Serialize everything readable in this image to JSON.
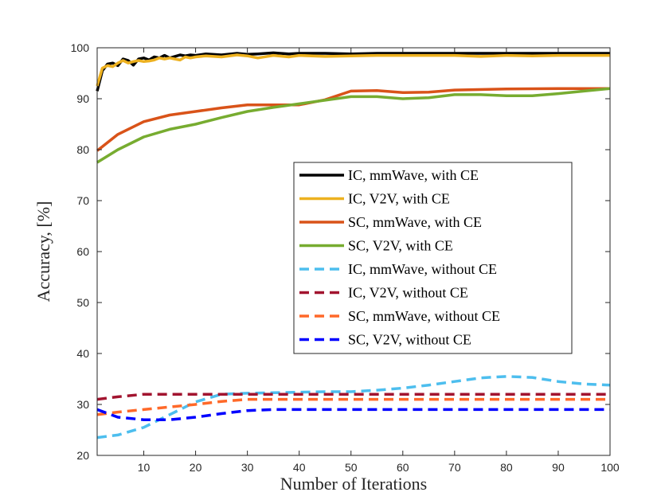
{
  "chart_data": {
    "type": "line",
    "title": "",
    "xlabel": "Number of Iterations",
    "ylabel": "Accuracy, [%]",
    "xlim": [
      1,
      100
    ],
    "ylim": [
      20,
      100
    ],
    "xticks": [
      10,
      20,
      30,
      40,
      50,
      60,
      70,
      80,
      90,
      100
    ],
    "yticks": [
      20,
      30,
      40,
      50,
      60,
      70,
      80,
      90,
      100
    ],
    "legend_position": "right-middle",
    "grid": false,
    "series": [
      {
        "name": "IC, mmWave, with CE",
        "color": "#000000",
        "style": "solid",
        "x": [
          1,
          2,
          3,
          4,
          5,
          6,
          7,
          8,
          9,
          10,
          11,
          12,
          13,
          14,
          15,
          16,
          17,
          18,
          19,
          20,
          22,
          25,
          28,
          30,
          32,
          35,
          38,
          40,
          45,
          50,
          55,
          60,
          65,
          70,
          75,
          80,
          85,
          90,
          95,
          100
        ],
        "y": [
          91.5,
          95.5,
          96.8,
          97.0,
          96.5,
          97.8,
          97.5,
          96.6,
          97.8,
          98.0,
          97.6,
          98.2,
          98.0,
          98.5,
          98.0,
          98.3,
          98.6,
          98.4,
          98.6,
          98.5,
          98.8,
          98.6,
          98.9,
          98.7,
          98.8,
          99.0,
          98.8,
          98.9,
          98.9,
          98.8,
          98.9,
          98.9,
          98.9,
          98.9,
          98.9,
          98.9,
          98.9,
          98.9,
          98.9,
          98.9
        ]
      },
      {
        "name": "IC, V2V, with CE",
        "color": "#EDB120",
        "style": "solid",
        "x": [
          1,
          2,
          3,
          4,
          5,
          6,
          7,
          8,
          9,
          10,
          11,
          12,
          13,
          14,
          15,
          16,
          17,
          18,
          19,
          20,
          22,
          25,
          28,
          30,
          32,
          35,
          38,
          40,
          45,
          50,
          55,
          60,
          65,
          70,
          75,
          80,
          85,
          90,
          95,
          100
        ],
        "y": [
          92.5,
          96.0,
          96.5,
          96.3,
          97.0,
          97.5,
          97.0,
          97.3,
          97.5,
          97.3,
          97.4,
          97.6,
          98.0,
          97.8,
          98.0,
          97.8,
          97.6,
          98.2,
          98.0,
          98.2,
          98.4,
          98.2,
          98.6,
          98.4,
          98.0,
          98.5,
          98.2,
          98.5,
          98.3,
          98.4,
          98.5,
          98.5,
          98.5,
          98.5,
          98.3,
          98.5,
          98.4,
          98.5,
          98.5,
          98.5
        ]
      },
      {
        "name": "SC, mmWave, with CE",
        "color": "#D95319",
        "style": "solid",
        "x": [
          1,
          5,
          10,
          15,
          20,
          25,
          30,
          35,
          40,
          45,
          50,
          55,
          60,
          65,
          70,
          80,
          90,
          100
        ],
        "y": [
          79.8,
          83.0,
          85.5,
          86.8,
          87.5,
          88.2,
          88.8,
          88.8,
          88.8,
          89.8,
          91.5,
          91.6,
          91.2,
          91.3,
          91.7,
          91.9,
          92.0,
          92.0
        ]
      },
      {
        "name": "SC, V2V, with CE",
        "color": "#77AC30",
        "style": "solid",
        "x": [
          1,
          5,
          10,
          15,
          20,
          25,
          30,
          35,
          40,
          45,
          50,
          55,
          60,
          65,
          70,
          75,
          80,
          85,
          90,
          95,
          100
        ],
        "y": [
          77.5,
          80.0,
          82.5,
          84.0,
          85.0,
          86.3,
          87.5,
          88.3,
          89.0,
          89.7,
          90.4,
          90.4,
          90.0,
          90.2,
          90.8,
          90.8,
          90.6,
          90.6,
          91.0,
          91.5,
          92.0
        ]
      },
      {
        "name": "IC, mmWave, without CE",
        "color": "#4DBEEE",
        "style": "dashed",
        "x": [
          1,
          5,
          10,
          15,
          20,
          25,
          30,
          35,
          40,
          45,
          50,
          55,
          60,
          65,
          70,
          75,
          80,
          85,
          90,
          95,
          100
        ],
        "y": [
          23.5,
          24.0,
          25.5,
          28.0,
          30.5,
          32.0,
          32.2,
          32.3,
          32.4,
          32.5,
          32.5,
          32.8,
          33.2,
          33.8,
          34.5,
          35.2,
          35.5,
          35.3,
          34.5,
          34.0,
          33.8
        ]
      },
      {
        "name": "IC, V2V, without CE",
        "color": "#A2142F",
        "style": "dashed",
        "x": [
          1,
          5,
          10,
          15,
          20,
          30,
          40,
          50,
          60,
          70,
          80,
          90,
          100
        ],
        "y": [
          31.0,
          31.5,
          32.0,
          32.0,
          32.0,
          32.0,
          32.0,
          32.0,
          32.0,
          32.0,
          32.0,
          32.0,
          32.0
        ]
      },
      {
        "name": "SC, mmWave, without CE",
        "color": "#FF6929",
        "style": "dashed",
        "x": [
          1,
          5,
          10,
          15,
          20,
          25,
          30,
          40,
          50,
          60,
          70,
          80,
          90,
          100
        ],
        "y": [
          28.0,
          28.5,
          29.0,
          29.5,
          30.0,
          30.6,
          31.0,
          31.0,
          31.0,
          31.0,
          31.0,
          31.0,
          31.0,
          31.0
        ]
      },
      {
        "name": "SC, V2V, without CE",
        "color": "#0000FF",
        "style": "dashed",
        "x": [
          1,
          5,
          10,
          15,
          20,
          25,
          30,
          35,
          40,
          50,
          60,
          70,
          80,
          90,
          100
        ],
        "y": [
          29.0,
          27.5,
          27.0,
          27.0,
          27.5,
          28.2,
          28.8,
          29.0,
          29.0,
          29.0,
          29.0,
          29.0,
          29.0,
          29.0,
          29.0
        ]
      }
    ]
  }
}
